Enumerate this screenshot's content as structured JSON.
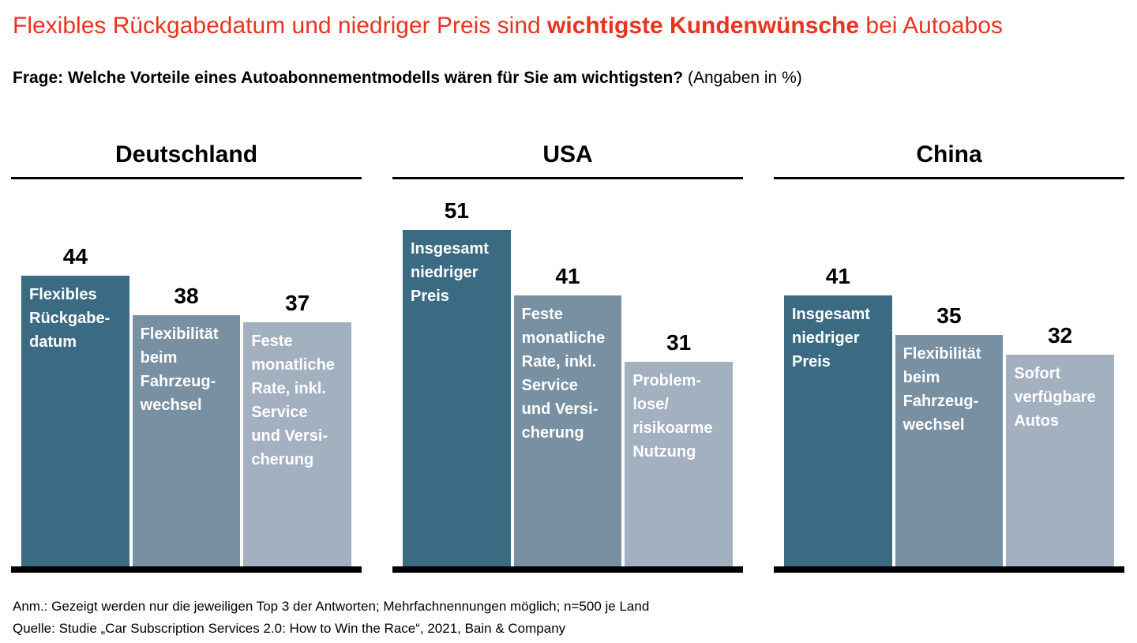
{
  "title": {
    "pre": "Flexibles Rückgabedatum und niedriger Preis sind ",
    "emphasis": "wichtigste Kundenwünsche",
    "post": " bei Autoabos"
  },
  "subtitle": {
    "question": "Frage: Welche Vorteile eines Autoabonnementmodells wären für Sie am wichtigsten?",
    "note": " (Angaben in %)"
  },
  "colors": {
    "title_red": "#E8341F",
    "bars": [
      "#3A6B83",
      "#7990A3",
      "#A2B0C0"
    ],
    "bar_text": "#FFFFFF",
    "axis": "#000000"
  },
  "chart_data": {
    "type": "bar",
    "title": "Welche Vorteile eines Autoabonnementmodells wären für Sie am wichtigsten?",
    "unit": "%",
    "value_range": [
      0,
      51
    ],
    "grid": false,
    "legend": false,
    "groups": [
      {
        "country": "Deutschland",
        "bars": [
          {
            "value": 44,
            "label": "Flexibles\nRückgabe-\ndatum"
          },
          {
            "value": 38,
            "label": "Flexibilität\nbeim\nFahrzeug-\nwechsel"
          },
          {
            "value": 37,
            "label": "Feste\nmonatliche\nRate, inkl.\nService\nund Versi-\ncherung"
          }
        ]
      },
      {
        "country": "USA",
        "bars": [
          {
            "value": 51,
            "label": "Insgesamt\nniedriger\nPreis"
          },
          {
            "value": 41,
            "label": "Feste\nmonatliche\nRate, inkl.\nService\nund Versi-\ncherung"
          },
          {
            "value": 31,
            "label": "Problem-\nlose/\nrisikoarme\nNutzung"
          }
        ]
      },
      {
        "country": "China",
        "bars": [
          {
            "value": 41,
            "label": "Insgesamt\nniedriger\nPreis"
          },
          {
            "value": 35,
            "label": "Flexibilität\nbeim\nFahrzeug-\nwechsel"
          },
          {
            "value": 32,
            "label": "Sofort\nverfügbare\nAutos"
          }
        ]
      }
    ]
  },
  "footnotes": {
    "note": "Anm.: Gezeigt werden nur die jeweiligen Top 3 der Antworten; Mehrfachnennungen möglich; n=500 je Land",
    "source": "Quelle: Studie „Car Subscription Services 2.0: How to Win the Race“, 2021, Bain & Company"
  }
}
